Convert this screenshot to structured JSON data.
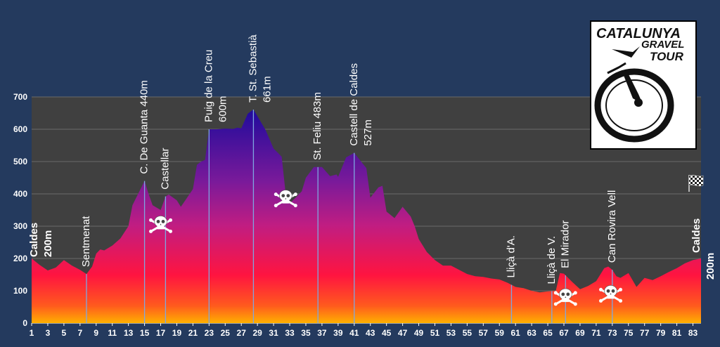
{
  "chart_data": {
    "type": "area",
    "title": "",
    "xlabel": "",
    "ylabel": "",
    "xlim": [
      1,
      84
    ],
    "ylim": [
      0,
      700
    ],
    "yticks": [
      0,
      100,
      200,
      300,
      400,
      500,
      600,
      700
    ],
    "xticks": [
      1,
      3,
      5,
      7,
      9,
      11,
      13,
      15,
      17,
      19,
      21,
      23,
      25,
      27,
      29,
      31,
      33,
      35,
      37,
      39,
      41,
      43,
      45,
      47,
      49,
      51,
      53,
      55,
      57,
      59,
      61,
      63,
      65,
      67,
      69,
      71,
      73,
      75,
      77,
      79,
      81,
      83
    ],
    "grid": true,
    "colors": {
      "top": "#1a0a9c",
      "mid": "#a0228f",
      "low": "#ff1440",
      "base": "#ffaa00",
      "background": "#243a5e",
      "plot": "#404040"
    },
    "points": [
      [
        1,
        200
      ],
      [
        2,
        180
      ],
      [
        3,
        163
      ],
      [
        4,
        172
      ],
      [
        5,
        195
      ],
      [
        6,
        178
      ],
      [
        7,
        165
      ],
      [
        7.8,
        152
      ],
      [
        8.5,
        175
      ],
      [
        9,
        215
      ],
      [
        9.5,
        228
      ],
      [
        10,
        225
      ],
      [
        11,
        240
      ],
      [
        12,
        262
      ],
      [
        13,
        300
      ],
      [
        13.5,
        365
      ],
      [
        14,
        390
      ],
      [
        15,
        440
      ],
      [
        15.5,
        400
      ],
      [
        16,
        365
      ],
      [
        17,
        350
      ],
      [
        17.6,
        392
      ],
      [
        18,
        398
      ],
      [
        19,
        380
      ],
      [
        19.5,
        360
      ],
      [
        20,
        378
      ],
      [
        21,
        415
      ],
      [
        21.5,
        490
      ],
      [
        22,
        500
      ],
      [
        22.5,
        505
      ],
      [
        23,
        600
      ],
      [
        24,
        600
      ],
      [
        25,
        602
      ],
      [
        26,
        601
      ],
      [
        26.5,
        605
      ],
      [
        27,
        603
      ],
      [
        27.8,
        648
      ],
      [
        28.5,
        661
      ],
      [
        29,
        640
      ],
      [
        30,
        598
      ],
      [
        31,
        540
      ],
      [
        31.5,
        528
      ],
      [
        32,
        515
      ],
      [
        32.5,
        400
      ],
      [
        33,
        370
      ],
      [
        34,
        395
      ],
      [
        34.5,
        408
      ],
      [
        35,
        450
      ],
      [
        36,
        483
      ],
      [
        37,
        483
      ],
      [
        38,
        455
      ],
      [
        38.8,
        460
      ],
      [
        39,
        453
      ],
      [
        40,
        513
      ],
      [
        41,
        527
      ],
      [
        42,
        495
      ],
      [
        42.5,
        480
      ],
      [
        43,
        388
      ],
      [
        44,
        420
      ],
      [
        44.5,
        425
      ],
      [
        45,
        345
      ],
      [
        46,
        325
      ],
      [
        47,
        360
      ],
      [
        48,
        330
      ],
      [
        48.5,
        300
      ],
      [
        49,
        260
      ],
      [
        50,
        220
      ],
      [
        51,
        195
      ],
      [
        52,
        178
      ],
      [
        53,
        178
      ],
      [
        54,
        165
      ],
      [
        55,
        152
      ],
      [
        56,
        145
      ],
      [
        57,
        143
      ],
      [
        58,
        138
      ],
      [
        59,
        135
      ],
      [
        60,
        125
      ],
      [
        61,
        112
      ],
      [
        62,
        108
      ],
      [
        63,
        100
      ],
      [
        64,
        95
      ],
      [
        65,
        98
      ],
      [
        66,
        100
      ],
      [
        66.5,
        155
      ],
      [
        67,
        153
      ],
      [
        68,
        128
      ],
      [
        69,
        105
      ],
      [
        70,
        115
      ],
      [
        71,
        130
      ],
      [
        72,
        170
      ],
      [
        72.5,
        175
      ],
      [
        73,
        165
      ],
      [
        73.5,
        145
      ],
      [
        74,
        140
      ],
      [
        75,
        155
      ],
      [
        76,
        112
      ],
      [
        77,
        140
      ],
      [
        78,
        133
      ],
      [
        79,
        145
      ],
      [
        80,
        158
      ],
      [
        81,
        170
      ],
      [
        82,
        185
      ],
      [
        83,
        195
      ],
      [
        84,
        200
      ]
    ],
    "waypoints": [
      {
        "x": 1,
        "name": "Caldes",
        "alt": "200m",
        "line": false,
        "bold": true
      },
      {
        "x": 7.8,
        "name": "Sentmenat",
        "alt": "",
        "line": true,
        "bold": false
      },
      {
        "x": 15,
        "name": "C. De Guanta 440m",
        "alt": "",
        "line": true,
        "bold": false
      },
      {
        "x": 17.6,
        "name": "Castellar",
        "alt": "",
        "line": true,
        "bold": false
      },
      {
        "x": 23,
        "name": "Puig de la Creu",
        "alt": "600m",
        "line": true,
        "bold": false
      },
      {
        "x": 28.5,
        "name": "T. St. Sebastià",
        "alt": "661m",
        "line": true,
        "bold": false
      },
      {
        "x": 36.5,
        "name": "St. Feliu  483m",
        "alt": "",
        "line": true,
        "bold": false
      },
      {
        "x": 41,
        "name": "Castell de Caldes",
        "alt": "527m",
        "line": true,
        "bold": false
      },
      {
        "x": 60.5,
        "name": "Lliçà d'A.",
        "alt": "",
        "line": true,
        "bold": false
      },
      {
        "x": 65.5,
        "name": "Lliçà de V.",
        "alt": "",
        "line": true,
        "bold": false
      },
      {
        "x": 67.2,
        "name": "El Mirador",
        "alt": "",
        "line": true,
        "bold": false
      },
      {
        "x": 73,
        "name": "Can Rovira Vell",
        "alt": "",
        "line": true,
        "bold": false
      },
      {
        "x": 84,
        "name": "Caldes",
        "alt": "200m",
        "line": false,
        "bold": true
      }
    ],
    "hazards": [
      {
        "x": 17,
        "alt": 310,
        "icon": "skull-crossbones-icon"
      },
      {
        "x": 32.5,
        "alt": 390,
        "icon": "skull-crossbones-icon"
      },
      {
        "x": 67.2,
        "alt": 85,
        "icon": "skull-crossbones-icon"
      },
      {
        "x": 72.8,
        "alt": 95,
        "icon": "skull-crossbones-icon"
      }
    ],
    "finish_icon": "checkered-flag-icon"
  },
  "logo": {
    "line1": "CATALUNYA",
    "line2": "GRAVEL",
    "line3": "TOUR",
    "icon": "cyclist-wheel-icon"
  }
}
